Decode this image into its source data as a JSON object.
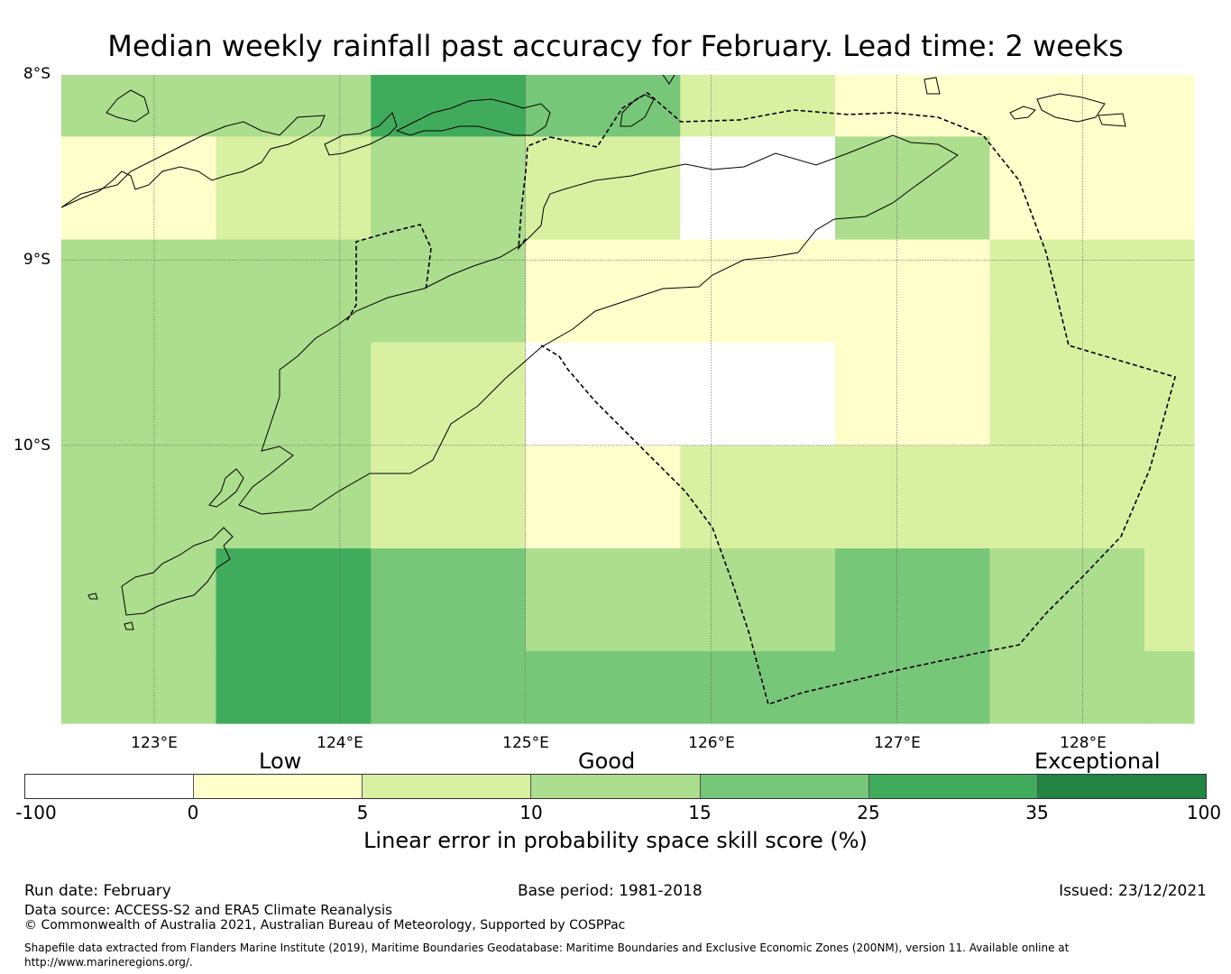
{
  "title": "Median weekly rainfall past accuracy for February. Lead time: 2 weeks",
  "map": {
    "lat_labels": [
      "8°S",
      "9°S",
      "10°S"
    ],
    "lon_labels": [
      "123°E",
      "124°E",
      "125°E",
      "126°E",
      "127°E",
      "128°E"
    ],
    "lat_range": [
      -11.5,
      -8.0
    ],
    "lon_range": [
      122.5,
      128.6
    ],
    "cell_rows": [
      {
        "lat_top": -8.0,
        "lat_bottom": -8.333
      },
      {
        "lat_top": -8.333,
        "lat_bottom": -8.889
      },
      {
        "lat_top": -8.889,
        "lat_bottom": -9.444
      },
      {
        "lat_top": -9.444,
        "lat_bottom": -10.0
      },
      {
        "lat_top": -10.0,
        "lat_bottom": -10.556
      },
      {
        "lat_top": -10.556,
        "lat_bottom": -11.111
      },
      {
        "lat_top": -11.111,
        "lat_bottom": -11.5
      }
    ],
    "cell_cols": [
      122.5,
      123.333,
      124.167,
      125.0,
      125.833,
      126.667,
      127.5,
      128.333,
      128.6
    ],
    "skill_categories": [
      [
        "3",
        "3",
        "5",
        "4",
        "2",
        "1",
        "1",
        "1"
      ],
      [
        "1",
        "2",
        "3",
        "2",
        "0",
        "3",
        "1",
        "1"
      ],
      [
        "3",
        "3",
        "3",
        "1",
        "1",
        "1",
        "2",
        "2"
      ],
      [
        "3",
        "3",
        "2",
        "0",
        "0",
        "1",
        "2",
        "2"
      ],
      [
        "3",
        "3",
        "2",
        "1",
        "2",
        "2",
        "2",
        "2"
      ],
      [
        "3",
        "5",
        "4",
        "3",
        "3",
        "4",
        "3",
        "2"
      ],
      [
        "3",
        "5",
        "4",
        "4",
        "4",
        "4",
        "3",
        "3"
      ]
    ],
    "category_colors": [
      "#ffffff",
      "#ffffcc",
      "#d9f0a3",
      "#addd8e",
      "#78c679",
      "#41ab5d",
      "#238443"
    ]
  },
  "legend": {
    "categories": [
      "Low",
      "Good",
      "Exceptional"
    ],
    "ticks": [
      "-100",
      "0",
      "5",
      "10",
      "15",
      "25",
      "35",
      "100"
    ],
    "label": "Linear error in probability space skill score (%)"
  },
  "footer": {
    "run_date": "Run date: February",
    "base_period": "Base period: 1981-2018",
    "issued": "Issued: 23/12/2021",
    "data_source": "Data source: ACCESS-S2 and ERA5 Climate Reanalysis",
    "copyright": "© Commonwealth of Australia 2021, Australian Bureau of Meteorology, Supported by COSPPac",
    "shapefile_note": "Shapefile data extracted from Flanders Marine Institute (2019), Maritime Boundaries Geodatabase: Maritime Boundaries and Exclusive Economic Zones (200NM), version 11. Available online at http://www.marineregions.org/."
  }
}
